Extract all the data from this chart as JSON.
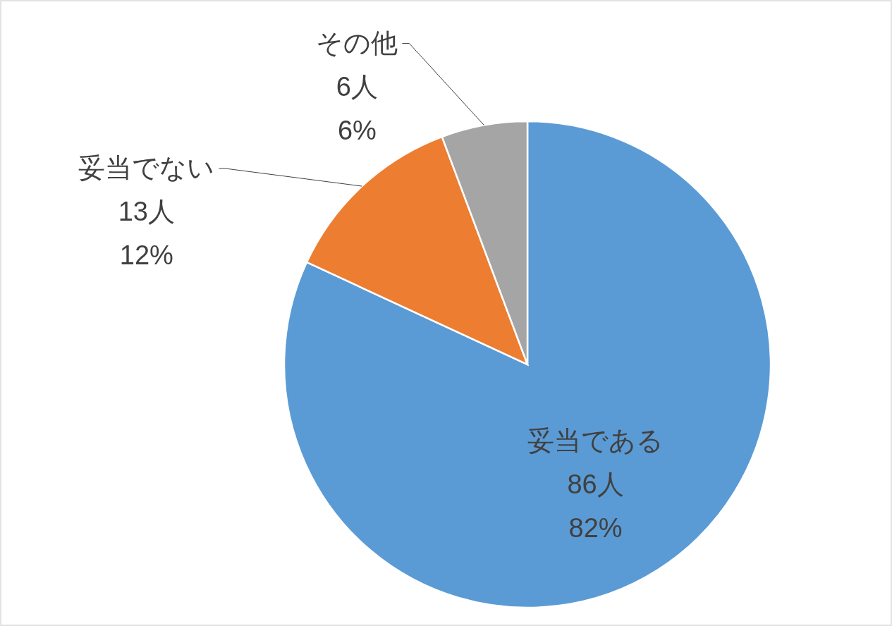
{
  "chart_data": {
    "type": "pie",
    "categories": [
      "妥当である",
      "妥当でない",
      "その他"
    ],
    "values": [
      86,
      13,
      6
    ],
    "colors": [
      "#5b9bd5",
      "#ed7d31",
      "#a5a5a5"
    ],
    "value_labels": [
      "86人\n82%",
      "13人\n12%",
      "6人\n6%"
    ],
    "legend": false
  }
}
